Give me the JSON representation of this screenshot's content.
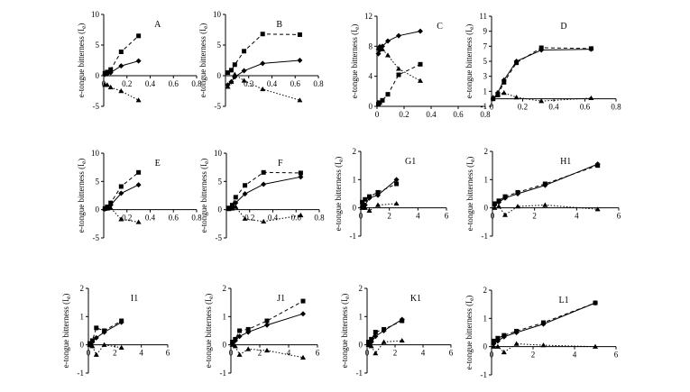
{
  "figure": {
    "ylabel": "e-tongue bitterness (I",
    "ylabel_sub": "e",
    "ylabel_close": ")"
  },
  "chart_data": [
    {
      "type": "line",
      "title": "A",
      "xlim": [
        0,
        0.8
      ],
      "xticks": [
        0,
        0.2,
        0.4,
        0.6,
        0.8
      ],
      "ylim": [
        -5,
        10
      ],
      "yticks": [
        -5,
        0,
        5,
        10
      ],
      "series": [
        {
          "marker": "square",
          "line": "dashed",
          "x": [
            0.01,
            0.03,
            0.06,
            0.15,
            0.3
          ],
          "y": [
            0.4,
            0.6,
            1.0,
            3.9,
            6.5
          ]
        },
        {
          "marker": "diamond",
          "line": "solid",
          "x": [
            0.01,
            0.03,
            0.06,
            0.15,
            0.3
          ],
          "y": [
            0.2,
            0.3,
            0.5,
            1.6,
            2.4
          ]
        },
        {
          "marker": "triangle",
          "line": "dotted",
          "x": [
            0.01,
            0.03,
            0.06,
            0.15,
            0.3
          ],
          "y": [
            -1.5,
            -1.5,
            -1.9,
            -2.5,
            -4.0
          ]
        }
      ]
    },
    {
      "type": "line",
      "title": "B",
      "xlim": [
        0,
        0.8
      ],
      "xticks": [
        0.2,
        0.4,
        0.6,
        0.8
      ],
      "ylim": [
        -5,
        10
      ],
      "yticks": [
        -5,
        0,
        5,
        10
      ],
      "series": [
        {
          "marker": "square",
          "line": "dashed",
          "x": [
            0.02,
            0.05,
            0.08,
            0.16,
            0.32,
            0.64
          ],
          "y": [
            0.5,
            0.9,
            1.8,
            4.0,
            6.8,
            6.7
          ]
        },
        {
          "marker": "diamond",
          "line": "solid",
          "x": [
            0.02,
            0.05,
            0.08,
            0.16,
            0.32,
            0.64
          ],
          "y": [
            -1.5,
            -1.0,
            -0.2,
            0.8,
            2.0,
            2.5
          ]
        },
        {
          "marker": "triangle",
          "line": "dotted",
          "x": [
            0.02,
            0.05,
            0.08,
            0.16,
            0.32,
            0.64
          ],
          "y": [
            -1.8,
            -1.0,
            0.2,
            -0.8,
            -2.2,
            -4.0
          ]
        }
      ]
    },
    {
      "type": "line",
      "title": "C",
      "xlim": [
        0,
        0.8
      ],
      "xticks": [
        0,
        0.2,
        0.4,
        0.6,
        0.8
      ],
      "ylim": [
        0,
        12
      ],
      "yticks": [
        0,
        4,
        8,
        12
      ],
      "series": [
        {
          "marker": "diamond",
          "line": "solid",
          "x": [
            0.01,
            0.02,
            0.04,
            0.08,
            0.16,
            0.32
          ],
          "y": [
            7.0,
            7.5,
            8.0,
            8.7,
            9.4,
            10.0
          ]
        },
        {
          "marker": "square",
          "line": "dashed",
          "x": [
            0.01,
            0.02,
            0.04,
            0.08,
            0.16,
            0.32
          ],
          "y": [
            0.3,
            0.5,
            0.8,
            1.6,
            4.2,
            5.6
          ]
        },
        {
          "marker": "triangle",
          "line": "dotted",
          "x": [
            0.01,
            0.02,
            0.04,
            0.08,
            0.16,
            0.32
          ],
          "y": [
            7.8,
            8.0,
            7.6,
            6.8,
            5.0,
            3.4
          ]
        }
      ]
    },
    {
      "type": "line",
      "title": "D",
      "xlim": [
        0,
        0.8
      ],
      "xticks": [
        0,
        0.2,
        0.4,
        0.6,
        0.8
      ],
      "ylim": [
        -1,
        11
      ],
      "yticks": [
        -1,
        1,
        3,
        5,
        7,
        9,
        11
      ],
      "series": [
        {
          "marker": "square",
          "line": "dashed",
          "x": [
            0.01,
            0.04,
            0.08,
            0.16,
            0.32,
            0.64
          ],
          "y": [
            0.0,
            0.5,
            2.2,
            4.8,
            6.8,
            6.7
          ]
        },
        {
          "marker": "diamond",
          "line": "solid",
          "x": [
            0.01,
            0.04,
            0.08,
            0.16,
            0.32,
            0.64
          ],
          "y": [
            0.0,
            0.8,
            2.5,
            5.0,
            6.5,
            6.6
          ]
        },
        {
          "marker": "triangle",
          "line": "dotted",
          "x": [
            0.01,
            0.04,
            0.08,
            0.16,
            0.32,
            0.64
          ],
          "y": [
            0.2,
            0.6,
            0.8,
            0.2,
            -0.3,
            0.1
          ]
        }
      ]
    },
    {
      "type": "line",
      "title": "E",
      "xlim": [
        0,
        0.8
      ],
      "xticks": [
        0.2,
        0.4,
        0.6,
        0.8
      ],
      "ylim": [
        -5,
        10
      ],
      "yticks": [
        -5,
        0,
        5,
        10
      ],
      "series": [
        {
          "marker": "square",
          "line": "dashed",
          "x": [
            0.01,
            0.03,
            0.06,
            0.15,
            0.3
          ],
          "y": [
            0.2,
            0.5,
            1.2,
            4.1,
            6.6
          ]
        },
        {
          "marker": "diamond",
          "line": "solid",
          "x": [
            0.01,
            0.03,
            0.06,
            0.15,
            0.3
          ],
          "y": [
            0.1,
            0.3,
            0.8,
            2.9,
            4.4
          ]
        },
        {
          "marker": "triangle",
          "line": "dotted",
          "x": [
            0.01,
            0.03,
            0.06,
            0.15,
            0.3
          ],
          "y": [
            0.2,
            0.2,
            0.3,
            -1.7,
            -2.2
          ]
        }
      ]
    },
    {
      "type": "line",
      "title": "F",
      "xlim": [
        0,
        0.8
      ],
      "xticks": [
        0.2,
        0.4,
        0.6,
        0.8
      ],
      "ylim": [
        -5,
        10
      ],
      "yticks": [
        -5,
        0,
        5,
        10
      ],
      "series": [
        {
          "marker": "square",
          "line": "dashed",
          "x": [
            0.02,
            0.05,
            0.08,
            0.16,
            0.32,
            0.64
          ],
          "y": [
            0.3,
            0.8,
            2.2,
            4.3,
            6.6,
            6.5
          ]
        },
        {
          "marker": "diamond",
          "line": "solid",
          "x": [
            0.02,
            0.05,
            0.08,
            0.16,
            0.32,
            0.64
          ],
          "y": [
            0.2,
            0.5,
            1.2,
            2.8,
            4.5,
            5.8
          ]
        },
        {
          "marker": "triangle",
          "line": "dotted",
          "x": [
            0.02,
            0.05,
            0.08,
            0.16,
            0.32,
            0.64
          ],
          "y": [
            0.1,
            0.2,
            0.5,
            -1.6,
            -2.1,
            -1.0
          ]
        }
      ]
    },
    {
      "type": "line",
      "title": "G1",
      "xlim": [
        0,
        6
      ],
      "xticks": [
        0,
        2,
        4,
        6
      ],
      "ylim": [
        -1,
        2
      ],
      "yticks": [
        -1,
        0,
        1,
        2
      ],
      "series": [
        {
          "marker": "square",
          "line": "dashed",
          "x": [
            0.1,
            0.3,
            0.6,
            1.2,
            2.5
          ],
          "y": [
            0.2,
            0.3,
            0.4,
            0.55,
            0.85
          ]
        },
        {
          "marker": "diamond",
          "line": "solid",
          "x": [
            0.1,
            0.3,
            0.6,
            1.2,
            2.5
          ],
          "y": [
            0.05,
            0.1,
            0.35,
            0.45,
            1.0
          ]
        },
        {
          "marker": "triangle",
          "line": "dotted",
          "x": [
            0.1,
            0.3,
            0.6,
            1.2,
            2.5
          ],
          "y": [
            0.0,
            0.0,
            -0.1,
            0.1,
            0.15
          ]
        }
      ]
    },
    {
      "type": "line",
      "title": "H1",
      "xlim": [
        0,
        6
      ],
      "xticks": [
        0,
        2,
        4,
        6
      ],
      "ylim": [
        -1,
        2
      ],
      "yticks": [
        -1,
        0,
        1,
        2
      ],
      "series": [
        {
          "marker": "square",
          "line": "dashed",
          "x": [
            0.1,
            0.3,
            0.6,
            1.2,
            2.5,
            5.0
          ],
          "y": [
            0.15,
            0.25,
            0.4,
            0.55,
            0.85,
            1.5
          ]
        },
        {
          "marker": "diamond",
          "line": "solid",
          "x": [
            0.1,
            0.3,
            0.6,
            1.2,
            2.5,
            5.0
          ],
          "y": [
            0.1,
            0.2,
            0.35,
            0.5,
            0.8,
            1.55
          ]
        },
        {
          "marker": "triangle",
          "line": "dotted",
          "x": [
            0.1,
            0.3,
            0.6,
            1.2,
            2.5,
            5.0
          ],
          "y": [
            0.0,
            0.05,
            -0.25,
            0.05,
            0.1,
            -0.05
          ]
        }
      ]
    },
    {
      "type": "line",
      "title": "I1",
      "xlim": [
        0,
        6
      ],
      "xticks": [
        0,
        2,
        4,
        6
      ],
      "ylim": [
        -1,
        2
      ],
      "yticks": [
        -1,
        0,
        1,
        2
      ],
      "series": [
        {
          "marker": "square",
          "line": "dashed",
          "x": [
            0.1,
            0.3,
            0.6,
            1.2,
            2.5
          ],
          "y": [
            0.05,
            0.15,
            0.6,
            0.5,
            0.85
          ]
        },
        {
          "marker": "diamond",
          "line": "solid",
          "x": [
            0.1,
            0.3,
            0.6,
            1.2,
            2.5
          ],
          "y": [
            0.0,
            0.1,
            0.25,
            0.45,
            0.8
          ]
        },
        {
          "marker": "triangle",
          "line": "dotted",
          "x": [
            0.1,
            0.3,
            0.6,
            1.2,
            2.5
          ],
          "y": [
            0.0,
            -0.05,
            -0.35,
            0.0,
            -0.1
          ]
        }
      ]
    },
    {
      "type": "line",
      "title": "J1",
      "xlim": [
        0,
        6
      ],
      "xticks": [
        0,
        2,
        4,
        6
      ],
      "ylim": [
        -1,
        2
      ],
      "yticks": [
        -1,
        0,
        1,
        2
      ],
      "series": [
        {
          "marker": "square",
          "line": "dashed",
          "x": [
            0.1,
            0.3,
            0.6,
            1.2,
            2.5,
            5.0
          ],
          "y": [
            0.1,
            0.2,
            0.5,
            0.55,
            0.85,
            1.55
          ]
        },
        {
          "marker": "diamond",
          "line": "solid",
          "x": [
            0.1,
            0.3,
            0.6,
            1.2,
            2.5,
            5.0
          ],
          "y": [
            0.05,
            0.15,
            0.3,
            0.45,
            0.7,
            1.1
          ]
        },
        {
          "marker": "triangle",
          "line": "dotted",
          "x": [
            0.1,
            0.3,
            0.6,
            1.2,
            2.5,
            5.0
          ],
          "y": [
            0.0,
            -0.05,
            -0.35,
            -0.15,
            -0.2,
            -0.45
          ]
        }
      ]
    },
    {
      "type": "line",
      "title": "K1",
      "xlim": [
        0,
        6
      ],
      "xticks": [
        0,
        2,
        4,
        6
      ],
      "ylim": [
        -1,
        2
      ],
      "yticks": [
        -1,
        0,
        1,
        2
      ],
      "series": [
        {
          "marker": "square",
          "line": "dashed",
          "x": [
            0.1,
            0.3,
            0.6,
            1.2,
            2.5
          ],
          "y": [
            0.1,
            0.2,
            0.45,
            0.55,
            0.85
          ]
        },
        {
          "marker": "diamond",
          "line": "solid",
          "x": [
            0.1,
            0.3,
            0.6,
            1.2,
            2.5
          ],
          "y": [
            0.0,
            0.1,
            0.3,
            0.5,
            0.9
          ]
        },
        {
          "marker": "triangle",
          "line": "dotted",
          "x": [
            0.1,
            0.3,
            0.6,
            1.2,
            2.5
          ],
          "y": [
            0.0,
            -0.05,
            -0.3,
            0.1,
            0.15
          ]
        }
      ]
    },
    {
      "type": "line",
      "title": "L1",
      "xlim": [
        0,
        6
      ],
      "xticks": [
        0,
        2,
        4,
        6
      ],
      "ylim": [
        -1,
        2
      ],
      "yticks": [
        -1,
        0,
        1,
        2
      ],
      "series": [
        {
          "marker": "square",
          "line": "dashed",
          "x": [
            0.1,
            0.3,
            0.6,
            1.2,
            2.5,
            5.0
          ],
          "y": [
            0.2,
            0.3,
            0.4,
            0.55,
            0.85,
            1.55
          ]
        },
        {
          "marker": "diamond",
          "line": "solid",
          "x": [
            0.1,
            0.3,
            0.6,
            1.2,
            2.5,
            5.0
          ],
          "y": [
            0.1,
            0.2,
            0.35,
            0.5,
            0.8,
            1.55
          ]
        },
        {
          "marker": "triangle",
          "line": "dotted",
          "x": [
            0.1,
            0.3,
            0.6,
            1.2,
            2.5,
            5.0
          ],
          "y": [
            0.0,
            0.0,
            -0.2,
            0.1,
            0.05,
            0.0
          ]
        }
      ]
    }
  ]
}
